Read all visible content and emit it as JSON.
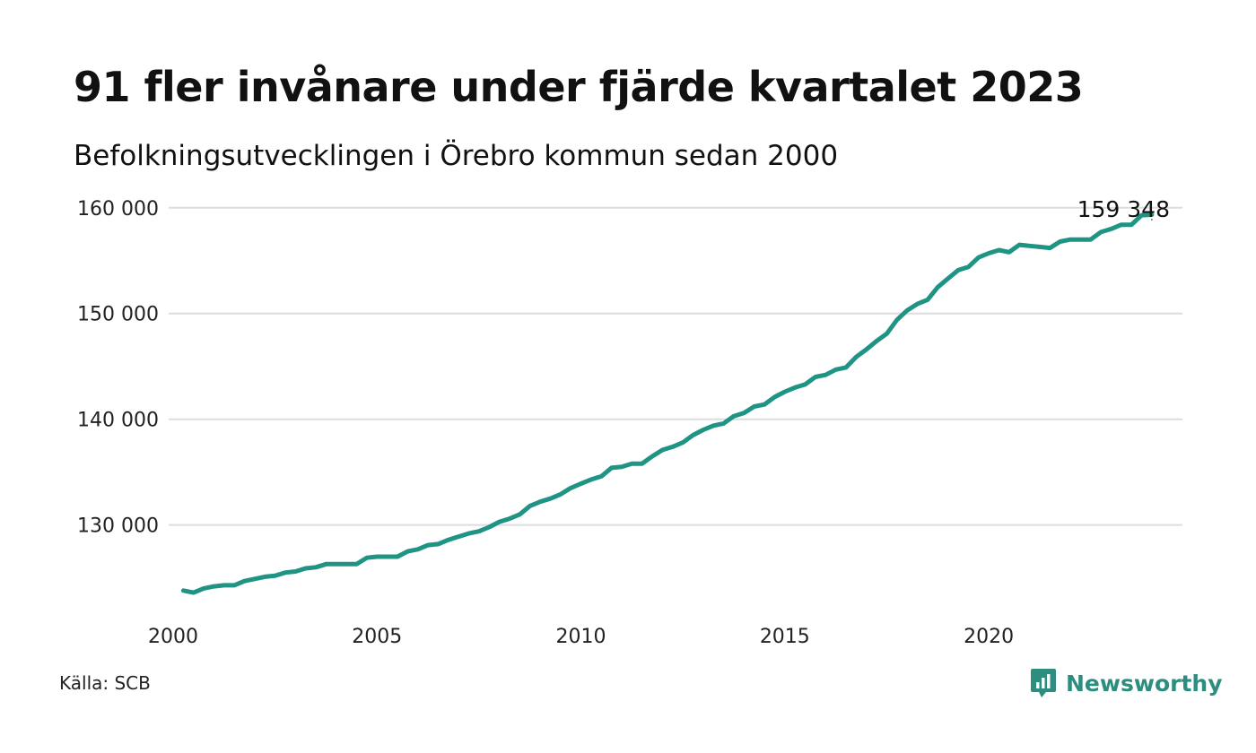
{
  "title": "91 fler invånare under fjärde kvartalet 2023",
  "subtitle": "Befolkningsutvecklingen i Örebro kommun sedan 2000",
  "source": "Källa: SCB",
  "brand": {
    "name": "Newsworthy",
    "icon": "newsworthy-chart-bubble-icon",
    "color": "#2d8d7f"
  },
  "colors": {
    "line": "#1f9484",
    "grid": "#dddddd"
  },
  "chart_data": {
    "type": "line",
    "title": "91 fler invånare under fjärde kvartalet 2023",
    "subtitle": "Befolkningsutvecklingen i Örebro kommun sedan 2000",
    "xlabel": "",
    "ylabel": "",
    "xlim": [
      2000,
      2024.75
    ],
    "ylim": [
      122000,
      161000
    ],
    "x_ticks": [
      2000,
      2005,
      2010,
      2015,
      2020
    ],
    "x_tick_labels": [
      "2000",
      "2005",
      "2010",
      "2015",
      "2020"
    ],
    "y_ticks": [
      130000,
      140000,
      150000,
      160000
    ],
    "y_tick_labels": [
      "130 000",
      "140 000",
      "150 000",
      "160 000"
    ],
    "grid": "horizontal",
    "legend": "none",
    "end_label": "159 348",
    "x": [
      2000.25,
      2000.5,
      2000.75,
      2001,
      2001.25,
      2001.5,
      2001.75,
      2002,
      2002.25,
      2002.5,
      2002.75,
      2003,
      2003.25,
      2003.5,
      2003.75,
      2004,
      2004.25,
      2004.5,
      2004.75,
      2005,
      2005.25,
      2005.5,
      2005.75,
      2006,
      2006.25,
      2006.5,
      2006.75,
      2007,
      2007.25,
      2007.5,
      2007.75,
      2008,
      2008.25,
      2008.5,
      2008.75,
      2009,
      2009.25,
      2009.5,
      2009.75,
      2010,
      2010.25,
      2010.5,
      2010.75,
      2011,
      2011.25,
      2011.5,
      2011.75,
      2012,
      2012.25,
      2012.5,
      2012.75,
      2013,
      2013.25,
      2013.5,
      2013.75,
      2014,
      2014.25,
      2014.5,
      2014.75,
      2015,
      2015.25,
      2015.5,
      2015.75,
      2016,
      2016.25,
      2016.5,
      2016.75,
      2017,
      2017.25,
      2017.5,
      2017.75,
      2018,
      2018.25,
      2018.5,
      2018.75,
      2019,
      2019.25,
      2019.5,
      2019.75,
      2020,
      2020.25,
      2020.5,
      2020.75,
      2021,
      2021.25,
      2021.5,
      2021.75,
      2022,
      2022.25,
      2022.5,
      2022.75,
      2023,
      2023.25,
      2023.5,
      2023.75,
      2024
    ],
    "series": [
      {
        "values": [
          123800,
          123600,
          124000,
          124200,
          124300,
          124300,
          124700,
          124900,
          125100,
          125200,
          125500,
          125600,
          125900,
          126000,
          126300,
          126300,
          126300,
          126300,
          126900,
          127000,
          127000,
          127000,
          127500,
          127700,
          128100,
          128200,
          128600,
          128900,
          129200,
          129400,
          129800,
          130300,
          130600,
          131000,
          131800,
          132200,
          132500,
          132900,
          133500,
          133900,
          134300,
          134600,
          135400,
          135500,
          135800,
          135800,
          136500,
          137100,
          137400,
          137800,
          138500,
          139000,
          139400,
          139600,
          140300,
          140600,
          141200,
          141400,
          142100,
          142600,
          143000,
          143300,
          144000,
          144200,
          144700,
          144900,
          145900,
          146600,
          147400,
          148100,
          149400,
          150300,
          150900,
          151300,
          152500,
          153300,
          154100,
          154400,
          155300,
          155700,
          156000,
          155800,
          156500,
          156400,
          156300,
          156200,
          156800,
          157000,
          157000,
          157000,
          157700,
          158000,
          158400,
          158400,
          159300,
          159348
        ]
      }
    ]
  }
}
